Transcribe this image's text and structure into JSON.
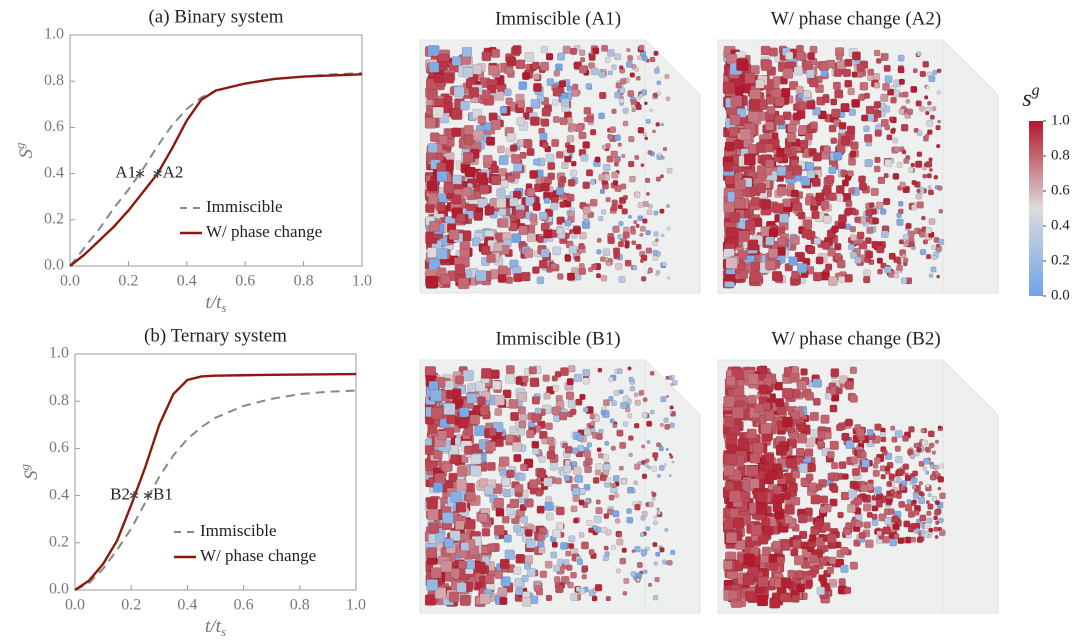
{
  "chart_data": [
    {
      "type": "line",
      "title": "(a) Binary system",
      "xlabel": {
        "base": "t/t",
        "sub": "s"
      },
      "ylabel": {
        "base": "S",
        "sup": "g"
      },
      "x": [
        0,
        0.05,
        0.1,
        0.15,
        0.2,
        0.25,
        0.3,
        0.35,
        0.4,
        0.45,
        0.5,
        0.6,
        0.7,
        0.8,
        0.9,
        1.0
      ],
      "series": [
        {
          "name": "Immiscible",
          "color": "#888888",
          "linestyle": "dashed",
          "values": [
            0,
            0.08,
            0.16,
            0.25,
            0.33,
            0.42,
            0.52,
            0.61,
            0.68,
            0.73,
            0.76,
            0.79,
            0.81,
            0.82,
            0.83,
            0.835
          ]
        },
        {
          "name": "W/ phase change",
          "color": "#8b1a0e",
          "linestyle": "solid",
          "values": [
            0,
            0.05,
            0.11,
            0.17,
            0.24,
            0.32,
            0.4,
            0.51,
            0.63,
            0.72,
            0.76,
            0.79,
            0.81,
            0.82,
            0.825,
            0.83
          ]
        }
      ],
      "markers": [
        {
          "label": "A1",
          "x": 0.24,
          "y": 0.4
        },
        {
          "label": "A2",
          "x": 0.3,
          "y": 0.4
        }
      ],
      "xlim": [
        0,
        1
      ],
      "ylim": [
        0,
        1
      ],
      "xticks": [
        {
          "value": 0,
          "label": "0.0"
        },
        0.2,
        0.4,
        0.6,
        0.8,
        {
          "value": 1,
          "label": "1.0"
        }
      ],
      "yticks": [
        {
          "value": 0,
          "label": "0.0"
        },
        0.2,
        0.4,
        0.6,
        0.8,
        {
          "value": 1,
          "label": "1.0"
        }
      ],
      "legend": "lower right",
      "grid": false
    },
    {
      "type": "line",
      "title": "(b) Ternary system",
      "xlabel": {
        "base": "t/t",
        "sub": "s"
      },
      "ylabel": {
        "base": "S",
        "sup": "g"
      },
      "x": [
        0,
        0.05,
        0.1,
        0.15,
        0.2,
        0.25,
        0.3,
        0.35,
        0.4,
        0.45,
        0.5,
        0.6,
        0.7,
        0.8,
        0.9,
        1.0
      ],
      "series": [
        {
          "name": "Immiscible",
          "color": "#888888",
          "linestyle": "dashed",
          "values": [
            0,
            0.03,
            0.09,
            0.17,
            0.26,
            0.37,
            0.48,
            0.57,
            0.64,
            0.69,
            0.73,
            0.78,
            0.81,
            0.83,
            0.84,
            0.845
          ]
        },
        {
          "name": "W/ phase change",
          "color": "#8b1a0e",
          "linestyle": "solid",
          "values": [
            0,
            0.04,
            0.11,
            0.21,
            0.36,
            0.52,
            0.7,
            0.83,
            0.89,
            0.905,
            0.908,
            0.91,
            0.912,
            0.913,
            0.914,
            0.915
          ]
        }
      ],
      "markers": [
        {
          "label": "B2",
          "x": 0.21,
          "y": 0.4
        },
        {
          "label": "B1",
          "x": 0.26,
          "y": 0.4
        }
      ],
      "xlim": [
        0,
        1
      ],
      "ylim": [
        0,
        1
      ],
      "xticks": [
        {
          "value": 0,
          "label": "0.0"
        },
        0.2,
        0.4,
        0.6,
        0.8,
        {
          "value": 1,
          "label": "1.0"
        }
      ],
      "yticks": [
        {
          "value": 0,
          "label": "0.0"
        },
        0.2,
        0.4,
        0.6,
        0.8,
        {
          "value": 1,
          "label": "1.0"
        }
      ],
      "legend": "lower right",
      "grid": false
    }
  ],
  "renderings": [
    {
      "title": "Immiscible (A1)"
    },
    {
      "title": "W/ phase change (A2)"
    },
    {
      "title": "Immiscible (B1)"
    },
    {
      "title": "W/ phase change (B2)"
    }
  ],
  "colorbar": {
    "label": {
      "base": "s",
      "sup": "g"
    },
    "lim": [
      0,
      1
    ],
    "ticks": [
      {
        "value": 0,
        "label": "0.0"
      },
      0.2,
      0.4,
      0.6,
      0.8,
      {
        "value": 1,
        "label": "1.0"
      }
    ]
  }
}
